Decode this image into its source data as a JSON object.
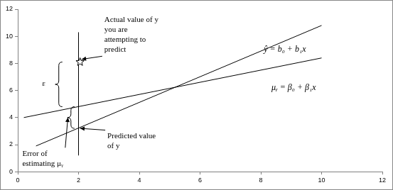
{
  "chart_data": {
    "type": "line",
    "xlim": [
      0,
      12
    ],
    "ylim": [
      0,
      12
    ],
    "xticks": [
      0,
      2,
      4,
      6,
      8,
      10,
      12
    ],
    "yticks": [
      0,
      2,
      4,
      6,
      8,
      10,
      12
    ],
    "grid": false,
    "series": [
      {
        "name": "ŷ = b₀ + b₁x",
        "color": "#000000",
        "x": [
          0.6,
          10
        ],
        "values": [
          1.9,
          10.8
        ],
        "label_position": [
          8.1,
          9.0
        ]
      },
      {
        "name": "μᵧ = β₀ + β₁x",
        "color": "#000000",
        "x": [
          0.2,
          10
        ],
        "values": [
          4.0,
          8.4
        ],
        "label_position": [
          8.35,
          6.2
        ]
      }
    ],
    "vertical_line": {
      "x": 2,
      "y_from": 1.2,
      "y_to": 10.3
    },
    "actual_point": {
      "x": 2.05,
      "y": 8.1,
      "marker": "star"
    },
    "epsilon_brace": {
      "x": 1.35,
      "y_from": 4.8,
      "y_to": 8.1
    },
    "error_brace": {
      "x": 1.75,
      "y_from": 3.2,
      "y_to": 4.8
    },
    "annotations": [
      {
        "text": [
          "Actual value of y",
          "you are",
          "attempting to",
          "predict"
        ],
        "x": 2.85,
        "y": 11.2,
        "arrow_to": [
          2.1,
          8.3
        ]
      },
      {
        "text": [
          "ε"
        ],
        "x": 0.8,
        "y": 6.5
      },
      {
        "text": [
          "Predicted value",
          "of y"
        ],
        "x": 2.95,
        "y": 2.6,
        "arrow_to": [
          2.05,
          3.2
        ]
      },
      {
        "text": [
          "Error of",
          "estimating μᵧ"
        ],
        "x": 0.15,
        "y": 1.3,
        "arrow_to": [
          1.65,
          4.0
        ]
      }
    ]
  }
}
